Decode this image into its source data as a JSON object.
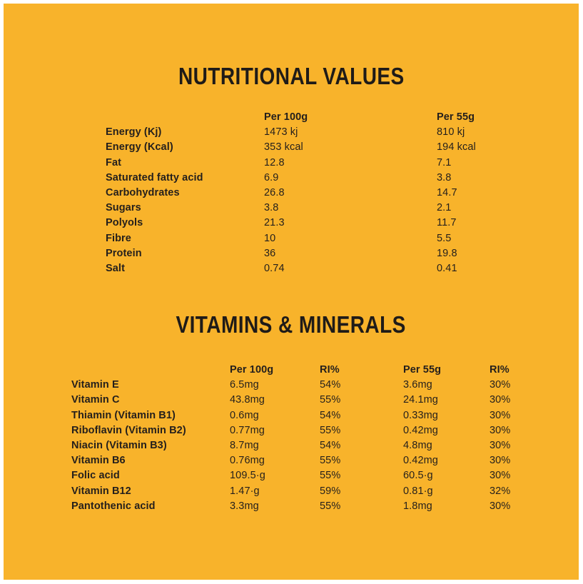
{
  "colors": {
    "panel_background": "#F8B32B",
    "frame": "#FFFFFF",
    "text": "#241F1C"
  },
  "nutritional": {
    "title": "NUTRITIONAL VALUES",
    "col_per100": "Per 100g",
    "col_per55": "Per 55g",
    "rows": [
      {
        "label": "Energy (Kj)",
        "per_100g": "1473 kj",
        "per_55g": "810 kj"
      },
      {
        "label": "Energy (Kcal)",
        "per_100g": "353 kcal",
        "per_55g": "194 kcal"
      },
      {
        "label": "Fat",
        "per_100g": "12.8",
        "per_55g": "7.1"
      },
      {
        "label": "Saturated fatty acid",
        "per_100g": "6.9",
        "per_55g": "3.8"
      },
      {
        "label": "Carbohydrates",
        "per_100g": "26.8",
        "per_55g": "14.7"
      },
      {
        "label": "Sugars",
        "per_100g": "3.8",
        "per_55g": "2.1"
      },
      {
        "label": "Polyols",
        "per_100g": "21.3",
        "per_55g": "11.7"
      },
      {
        "label": "Fibre",
        "per_100g": "10",
        "per_55g": "5.5"
      },
      {
        "label": "Protein",
        "per_100g": "36",
        "per_55g": "19.8"
      },
      {
        "label": "Salt",
        "per_100g": "0.74",
        "per_55g": "0.41"
      }
    ]
  },
  "vitamins": {
    "title": "VITAMINS & MINERALS",
    "col_per100": "Per 100g",
    "col_ri100": "RI%",
    "col_per55": "Per 55g",
    "col_ri55": "RI%",
    "rows": [
      {
        "label": "Vitamin E",
        "per_100g": "6.5mg",
        "ri_100g": "54%",
        "per_55g": "3.6mg",
        "ri_55g": "30%"
      },
      {
        "label": "Vitamin C",
        "per_100g": "43.8mg",
        "ri_100g": "55%",
        "per_55g": "24.1mg",
        "ri_55g": "30%"
      },
      {
        "label": "Thiamin (Vitamin B1)",
        "per_100g": "0.6mg",
        "ri_100g": "54%",
        "per_55g": "0.33mg",
        "ri_55g": "30%"
      },
      {
        "label": "Riboflavin (Vitamin B2)",
        "per_100g": "0.77mg",
        "ri_100g": "55%",
        "per_55g": "0.42mg",
        "ri_55g": "30%"
      },
      {
        "label": "Niacin (Vitamin B3)",
        "per_100g": "8.7mg",
        "ri_100g": "54%",
        "per_55g": "4.8mg",
        "ri_55g": "30%"
      },
      {
        "label": "Vitamin B6",
        "per_100g": "0.76mg",
        "ri_100g": "55%",
        "per_55g": "0.42mg",
        "ri_55g": "30%"
      },
      {
        "label": "Folic acid",
        "per_100g": "109.5·g",
        "ri_100g": "55%",
        "per_55g": "60.5·g",
        "ri_55g": "30%"
      },
      {
        "label": "Vitamin B12",
        "per_100g": "1.47·g",
        "ri_100g": "59%",
        "per_55g": "0.81·g",
        "ri_55g": "32%"
      },
      {
        "label": "Pantothenic acid",
        "per_100g": "3.3mg",
        "ri_100g": "55%",
        "per_55g": "1.8mg",
        "ri_55g": "30%"
      }
    ]
  }
}
